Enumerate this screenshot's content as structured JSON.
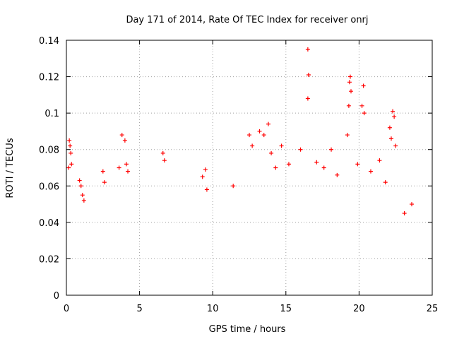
{
  "chart_data": {
    "type": "scatter",
    "title": "Day 171 of 2014, Rate Of TEC Index for receiver onrj",
    "xlabel": "GPS time / hours",
    "ylabel": "ROTI / TECUs",
    "xlim": [
      0,
      25
    ],
    "ylim": [
      0,
      0.14
    ],
    "xticks": [
      0,
      5,
      10,
      15,
      20,
      25
    ],
    "yticks": [
      0,
      0.02,
      0.04,
      0.06,
      0.08,
      0.1,
      0.12,
      0.14
    ],
    "xtick_labels": [
      "0",
      "5",
      "10",
      "15",
      "20",
      "25"
    ],
    "ytick_labels": [
      "0",
      "0.02",
      "0.04",
      "0.06",
      "0.08",
      "0.1",
      "0.12",
      "0.14"
    ],
    "grid": true,
    "marker": "+",
    "marker_color": "#ff0000",
    "series": [
      {
        "name": "ROTI",
        "x": [
          16.5,
          16.55,
          16.5,
          19.4,
          19.35,
          19.45,
          19.3,
          20.3,
          20.2,
          20.35,
          22.3,
          22.4,
          22.1,
          22.2,
          0.2,
          0.25,
          0.3,
          0.35,
          0.15,
          0.9,
          1.0,
          1.1,
          1.2,
          2.5,
          2.6,
          3.6,
          3.8,
          4.0,
          4.1,
          4.2,
          6.6,
          6.7,
          9.5,
          9.3,
          9.6,
          11.4,
          12.5,
          12.7,
          13.2,
          13.5,
          13.8,
          14.0,
          14.3,
          14.7,
          15.2,
          16.0,
          17.1,
          17.6,
          18.1,
          18.5,
          19.2,
          19.9,
          20.8,
          21.4,
          21.8,
          22.5,
          23.1,
          23.6
        ],
        "y": [
          0.135,
          0.121,
          0.108,
          0.12,
          0.117,
          0.112,
          0.104,
          0.115,
          0.104,
          0.1,
          0.101,
          0.098,
          0.092,
          0.086,
          0.085,
          0.082,
          0.078,
          0.072,
          0.07,
          0.063,
          0.06,
          0.055,
          0.052,
          0.068,
          0.062,
          0.07,
          0.088,
          0.085,
          0.072,
          0.068,
          0.078,
          0.074,
          0.069,
          0.065,
          0.058,
          0.06,
          0.088,
          0.082,
          0.09,
          0.088,
          0.094,
          0.078,
          0.07,
          0.082,
          0.072,
          0.08,
          0.073,
          0.07,
          0.08,
          0.066,
          0.088,
          0.072,
          0.068,
          0.074,
          0.062,
          0.082,
          0.045,
          0.05
        ]
      }
    ]
  }
}
